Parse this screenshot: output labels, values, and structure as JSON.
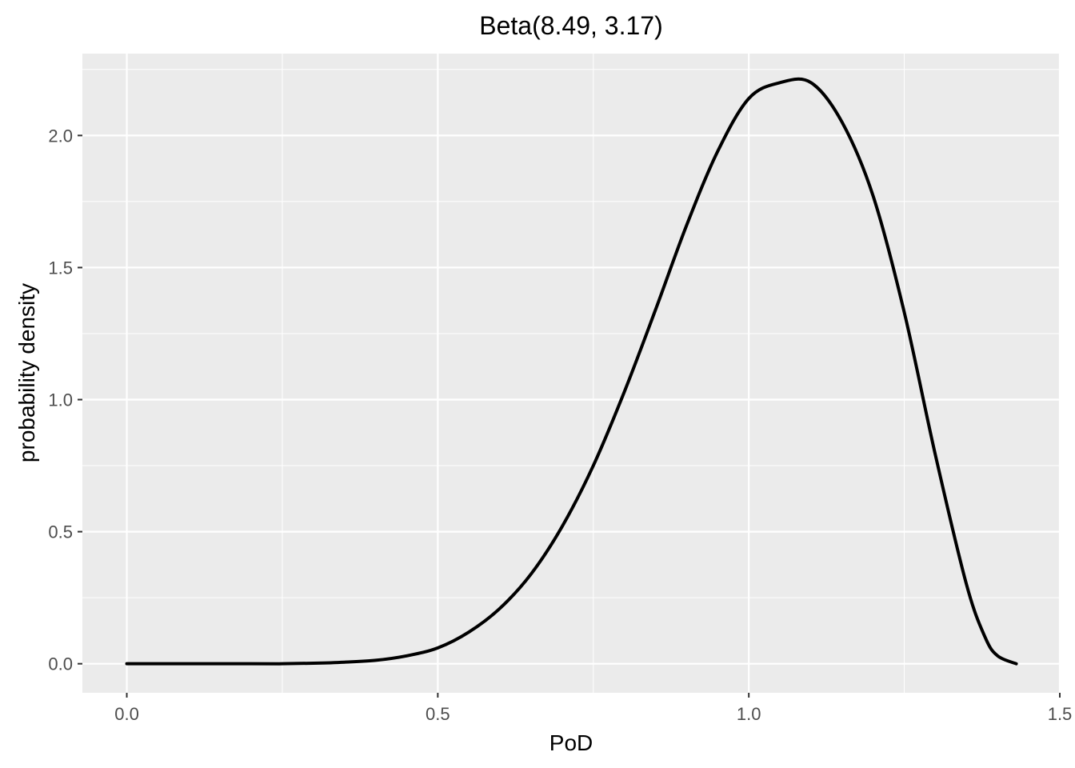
{
  "chart_data": {
    "type": "line",
    "title": "Beta(8.49, 3.17)",
    "xlabel": "PoD",
    "ylabel": "probability density",
    "xlim": [
      -0.0714,
      1.5
    ],
    "ylim": [
      -0.11,
      2.31
    ],
    "x_ticks": [
      0.0,
      0.5,
      1.0,
      1.5
    ],
    "x_tick_labels": [
      "0.0",
      "0.5",
      "1.0",
      "1.5"
    ],
    "y_ticks": [
      0.0,
      0.5,
      1.0,
      1.5,
      2.0
    ],
    "y_tick_labels": [
      "0.0",
      "0.5",
      "1.0",
      "1.5",
      "2.0"
    ],
    "grid": true,
    "panel_background": "#ebebeb",
    "grid_color": "#ffffff",
    "line_color": "#000000",
    "series": [
      {
        "x": [
          0.0,
          0.05,
          0.1,
          0.15,
          0.2,
          0.25,
          0.3,
          0.35,
          0.4,
          0.45,
          0.5,
          0.55,
          0.6,
          0.65,
          0.7,
          0.75,
          0.8,
          0.85,
          0.9,
          0.95,
          1.0,
          1.05,
          1.1,
          1.15,
          1.2,
          1.25,
          1.3,
          1.35,
          1.38,
          1.4,
          1.43
        ],
        "values": [
          0.0,
          0.0,
          0.0,
          0.0,
          0.0,
          0.0,
          0.002,
          0.006,
          0.013,
          0.03,
          0.06,
          0.12,
          0.21,
          0.34,
          0.52,
          0.75,
          1.03,
          1.34,
          1.66,
          1.94,
          2.14,
          2.2,
          2.2,
          2.05,
          1.77,
          1.33,
          0.79,
          0.3,
          0.1,
          0.03,
          0.0
        ]
      }
    ]
  }
}
